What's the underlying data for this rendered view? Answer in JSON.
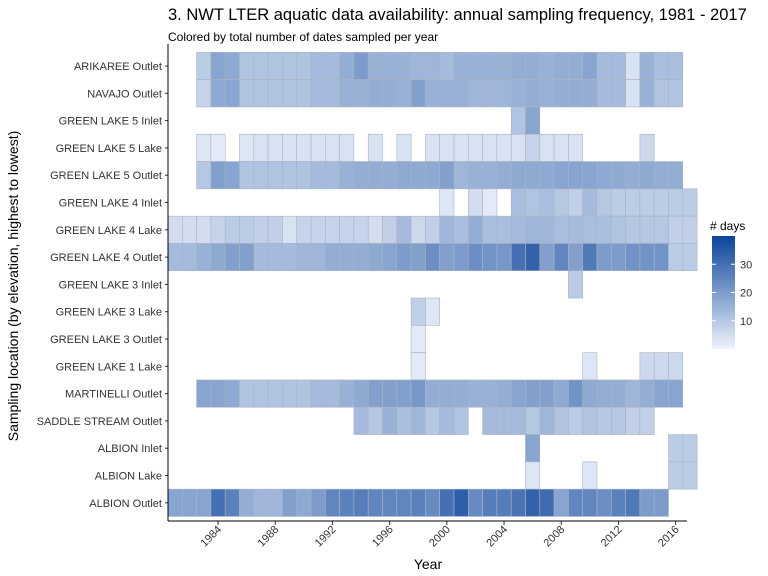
{
  "chart_data": {
    "type": "heatmap",
    "title": "3. NWT LTER aquatic data availability: annual sampling frequency, 1981 - 2017",
    "subtitle": "Colored by total number of dates sampled per year",
    "xlabel": "Year",
    "ylabel": "Sampling location (by elevation, highest to lowest)",
    "x_ticks": [
      "1984",
      "1988",
      "1992",
      "1996",
      "2000",
      "2004",
      "2008",
      "2012",
      "2016"
    ],
    "xlim": [
      1981,
      2017
    ],
    "rows": [
      "ARIKAREE Outlet",
      "NAVAJO Outlet",
      "GREEN LAKE 5 Inlet",
      "GREEN LAKE 5 Lake",
      "GREEN LAKE 5 Outlet",
      "GREEN LAKE 4 Inlet",
      "GREEN LAKE 4 Lake",
      "GREEN LAKE 4 Outlet",
      "GREEN LAKE 3 Inlet",
      "GREEN LAKE 3 Lake",
      "GREEN LAKE 3 Outlet",
      "GREEN LAKE 1 Lake",
      "MARTINELLI Outlet",
      "SADDLE STREAM Outlet",
      "ALBION Inlet",
      "ALBION Lake",
      "ALBION Outlet"
    ],
    "series": [
      {
        "name": "ARIKAREE Outlet",
        "start": 1983,
        "values": [
          9,
          18,
          17,
          11,
          11,
          11,
          11,
          11,
          13,
          13,
          16,
          20,
          15,
          15,
          15,
          14,
          14,
          13,
          15,
          15,
          15,
          15,
          16,
          16,
          15,
          16,
          16,
          18,
          13,
          13,
          4,
          15,
          12,
          12
        ]
      },
      {
        "name": "NAVAJO Outlet",
        "start": 1983,
        "values": [
          7,
          17,
          18,
          11,
          11,
          11,
          11,
          11,
          13,
          13,
          15,
          15,
          16,
          16,
          15,
          19,
          15,
          15,
          15,
          14,
          14,
          14,
          15,
          16,
          15,
          16,
          16,
          16,
          13,
          13,
          4,
          15,
          11,
          11
        ]
      },
      {
        "name": "GREEN LAKE 5 Inlet",
        "start": 2005,
        "values": [
          11,
          18
        ]
      },
      {
        "name": "GREEN LAKE 5 Lake",
        "start": 1983,
        "values": [
          3,
          2,
          null,
          3,
          4,
          4,
          4,
          4,
          4,
          4,
          4,
          null,
          4,
          null,
          4,
          null,
          4,
          4,
          4,
          4,
          4,
          4,
          4,
          7,
          4,
          4,
          4,
          null,
          null,
          null,
          null,
          6
        ]
      },
      {
        "name": "GREEN LAKE 5 Outlet",
        "start": 1983,
        "values": [
          10,
          19,
          18,
          11,
          11,
          11,
          11,
          11,
          13,
          13,
          15,
          16,
          16,
          16,
          17,
          17,
          17,
          19,
          14,
          15,
          15,
          16,
          17,
          17,
          17,
          18,
          18,
          18,
          17,
          17,
          16,
          17,
          16,
          16
        ]
      },
      {
        "name": "GREEN LAKE 4 Inlet",
        "start": 2000,
        "values": [
          3,
          null,
          5,
          2,
          null,
          12,
          11,
          12,
          10,
          8,
          13,
          10,
          9,
          9,
          9,
          9,
          9,
          9
        ]
      },
      {
        "name": "GREEN LAKE 4 Lake",
        "start": 1981,
        "values": [
          5,
          5,
          5,
          7,
          9,
          9,
          8,
          8,
          4,
          7,
          7,
          7,
          7,
          7,
          5,
          8,
          13,
          6,
          8,
          14,
          12,
          16,
          12,
          12,
          13,
          14,
          14,
          12,
          13,
          12,
          12,
          11,
          10,
          10,
          10,
          8,
          8
        ]
      },
      {
        "name": "GREEN LAKE 4 Outlet",
        "start": 1981,
        "values": [
          13,
          13,
          15,
          17,
          19,
          19,
          13,
          13,
          13,
          14,
          14,
          16,
          16,
          16,
          17,
          18,
          20,
          19,
          23,
          19,
          20,
          23,
          22,
          21,
          30,
          33,
          19,
          25,
          19,
          28,
          20,
          20,
          22,
          22,
          22,
          9,
          9
        ]
      },
      {
        "name": "GREEN LAKE 3 Inlet",
        "start": 2009,
        "values": [
          9
        ]
      },
      {
        "name": "GREEN LAKE 3 Lake",
        "start": 1998,
        "values": [
          8,
          3
        ]
      },
      {
        "name": "GREEN LAKE 3 Outlet",
        "start": 1998,
        "values": [
          2
        ]
      },
      {
        "name": "GREEN LAKE 1 Lake",
        "start": 1998,
        "values": [
          2,
          null,
          null,
          null,
          null,
          null,
          null,
          null,
          null,
          null,
          null,
          null,
          3,
          null,
          null,
          null,
          6,
          6,
          6
        ]
      },
      {
        "name": "MARTINELLI Outlet",
        "start": 1983,
        "values": [
          18,
          18,
          17,
          11,
          11,
          11,
          11,
          11,
          13,
          13,
          15,
          17,
          19,
          19,
          19,
          21,
          16,
          16,
          16,
          15,
          15,
          16,
          18,
          19,
          19,
          17,
          22,
          17,
          16,
          16,
          14,
          16,
          18,
          18
        ]
      },
      {
        "name": "SADDLE STREAM Outlet",
        "start": 1994,
        "values": [
          13,
          10,
          15,
          12,
          14,
          10,
          13,
          11,
          null,
          13,
          13,
          13,
          10,
          14,
          11,
          9,
          11,
          10,
          10,
          8,
          8
        ]
      },
      {
        "name": "ALBION Inlet",
        "start": 2006,
        "values": [
          18,
          null,
          null,
          null,
          null,
          null,
          null,
          null,
          null,
          null,
          9,
          9
        ]
      },
      {
        "name": "ALBION Lake",
        "start": 2006,
        "values": [
          3,
          null,
          null,
          null,
          3,
          null,
          null,
          null,
          null,
          null,
          9,
          9
        ]
      },
      {
        "name": "ALBION Outlet",
        "start": 1981,
        "values": [
          18,
          18,
          18,
          30,
          26,
          16,
          14,
          14,
          19,
          17,
          20,
          25,
          26,
          27,
          25,
          25,
          25,
          26,
          24,
          30,
          34,
          24,
          27,
          27,
          29,
          33,
          31,
          18,
          25,
          25,
          23,
          26,
          28,
          20,
          20
        ]
      }
    ],
    "color_scale": {
      "min_color": "#eef3fc",
      "max_color": "#0c449a",
      "domain": [
        0,
        40
      ],
      "ticks": [
        10,
        20,
        30
      ]
    },
    "legend": {
      "title": "# days",
      "position": "right"
    },
    "grid": false
  }
}
